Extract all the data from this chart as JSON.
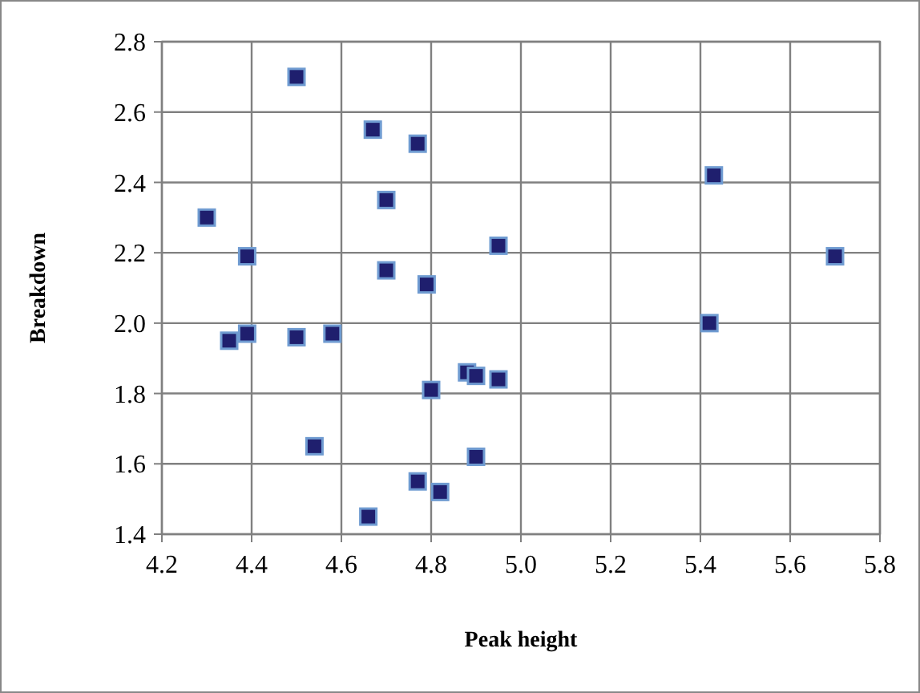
{
  "chart_data": {
    "type": "scatter",
    "xlabel": "Peak height",
    "ylabel": "Breakdown",
    "xlim": [
      4.2,
      5.8
    ],
    "xticks": [
      {
        "value": 4.2,
        "label": "4.2"
      },
      {
        "value": 4.4,
        "label": "4.4"
      },
      {
        "value": 4.6,
        "label": "4.6"
      },
      {
        "value": 4.8,
        "label": "4.8"
      },
      {
        "value": 5.0,
        "label": "5.0"
      },
      {
        "value": 5.2,
        "label": "5.2"
      },
      {
        "value": 5.4,
        "label": "5.4"
      },
      {
        "value": 5.6,
        "label": "5.6"
      },
      {
        "value": 5.8,
        "label": "5.8"
      }
    ],
    "ylim": [
      1.4,
      2.8
    ],
    "yticks": [
      {
        "value": 1.4,
        "label": "1.4"
      },
      {
        "value": 1.6,
        "label": "1.6"
      },
      {
        "value": 1.8,
        "label": "1.8"
      },
      {
        "value": 2.0,
        "label": "2.0"
      },
      {
        "value": 2.2,
        "label": "2.2"
      },
      {
        "value": 2.4,
        "label": "2.4"
      },
      {
        "value": 2.6,
        "label": "2.6"
      },
      {
        "value": 2.8,
        "label": "2.8"
      }
    ],
    "grid": true,
    "marker": "square",
    "series": [
      {
        "color": "#1f1f6e",
        "x": [
          4.5,
          4.67,
          4.77,
          4.3,
          4.7,
          4.39,
          4.7,
          4.79,
          4.95,
          4.35,
          4.39,
          4.5,
          4.58,
          4.88,
          4.9,
          4.95,
          4.8,
          4.54,
          4.9,
          4.77,
          4.82,
          4.66,
          5.43,
          5.42,
          5.7
        ],
        "values": [
          2.7,
          2.55,
          2.51,
          2.3,
          2.35,
          2.19,
          2.15,
          2.11,
          2.22,
          1.95,
          1.97,
          1.96,
          1.97,
          1.86,
          1.85,
          1.84,
          1.81,
          1.65,
          1.62,
          1.55,
          1.52,
          1.45,
          2.42,
          2.0,
          2.19
        ]
      }
    ]
  }
}
